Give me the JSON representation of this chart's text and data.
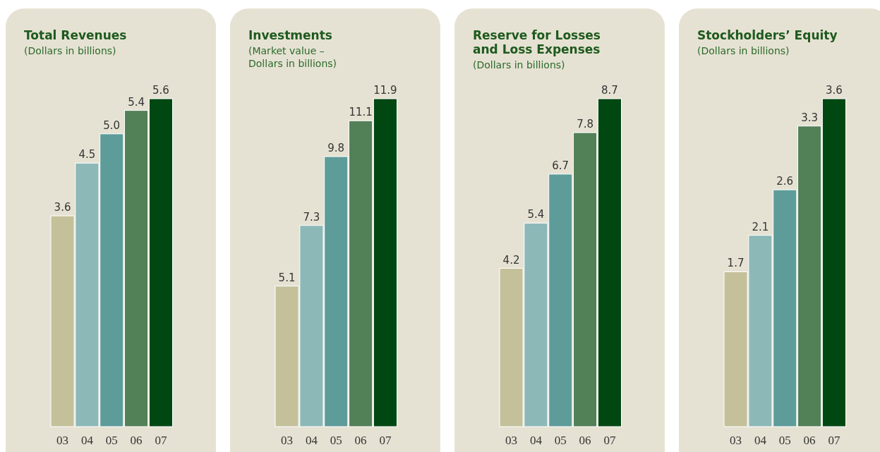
{
  "chart_data": [
    {
      "type": "bar",
      "title": "Total Revenues",
      "subtitle": "(Dollars in billions)",
      "categories": [
        "03",
        "04",
        "05",
        "06",
        "07"
      ],
      "values": [
        3.6,
        4.5,
        5.0,
        5.4,
        5.6
      ],
      "colors": [
        "#c4c09a",
        "#8db8b8",
        "#5e9c9a",
        "#528057",
        "#004712"
      ],
      "value_labels": [
        "3.6",
        "4.5",
        "5.0",
        "5.4",
        "5.6"
      ]
    },
    {
      "type": "bar",
      "title": "Investments",
      "subtitle": "(Market value –\nDollars in billions)",
      "categories": [
        "03",
        "04",
        "05",
        "06",
        "07"
      ],
      "values": [
        5.1,
        7.3,
        9.8,
        11.1,
        11.9
      ],
      "colors": [
        "#c4c09a",
        "#8db8b8",
        "#5e9c9a",
        "#528057",
        "#004712"
      ],
      "value_labels": [
        "5.1",
        "7.3",
        "9.8",
        "11.1",
        "11.9"
      ]
    },
    {
      "type": "bar",
      "title": "Reserve for Losses\nand Loss Expenses",
      "subtitle": "(Dollars in billions)",
      "categories": [
        "03",
        "04",
        "05",
        "06",
        "07"
      ],
      "values": [
        4.2,
        5.4,
        6.7,
        7.8,
        8.7
      ],
      "colors": [
        "#c4c09a",
        "#8db8b8",
        "#5e9c9a",
        "#528057",
        "#004712"
      ],
      "value_labels": [
        "4.2",
        "5.4",
        "6.7",
        "7.8",
        "8.7"
      ]
    },
    {
      "type": "bar",
      "title": "Stockholders’ Equity",
      "subtitle": "(Dollars in billions)",
      "categories": [
        "03",
        "04",
        "05",
        "06",
        "07"
      ],
      "values": [
        1.7,
        2.1,
        2.6,
        3.3,
        3.6
      ],
      "colors": [
        "#c4c09a",
        "#8db8b8",
        "#5e9c9a",
        "#528057",
        "#004712"
      ],
      "value_labels": [
        "1.7",
        "2.1",
        "2.6",
        "3.3",
        "3.6"
      ]
    }
  ]
}
